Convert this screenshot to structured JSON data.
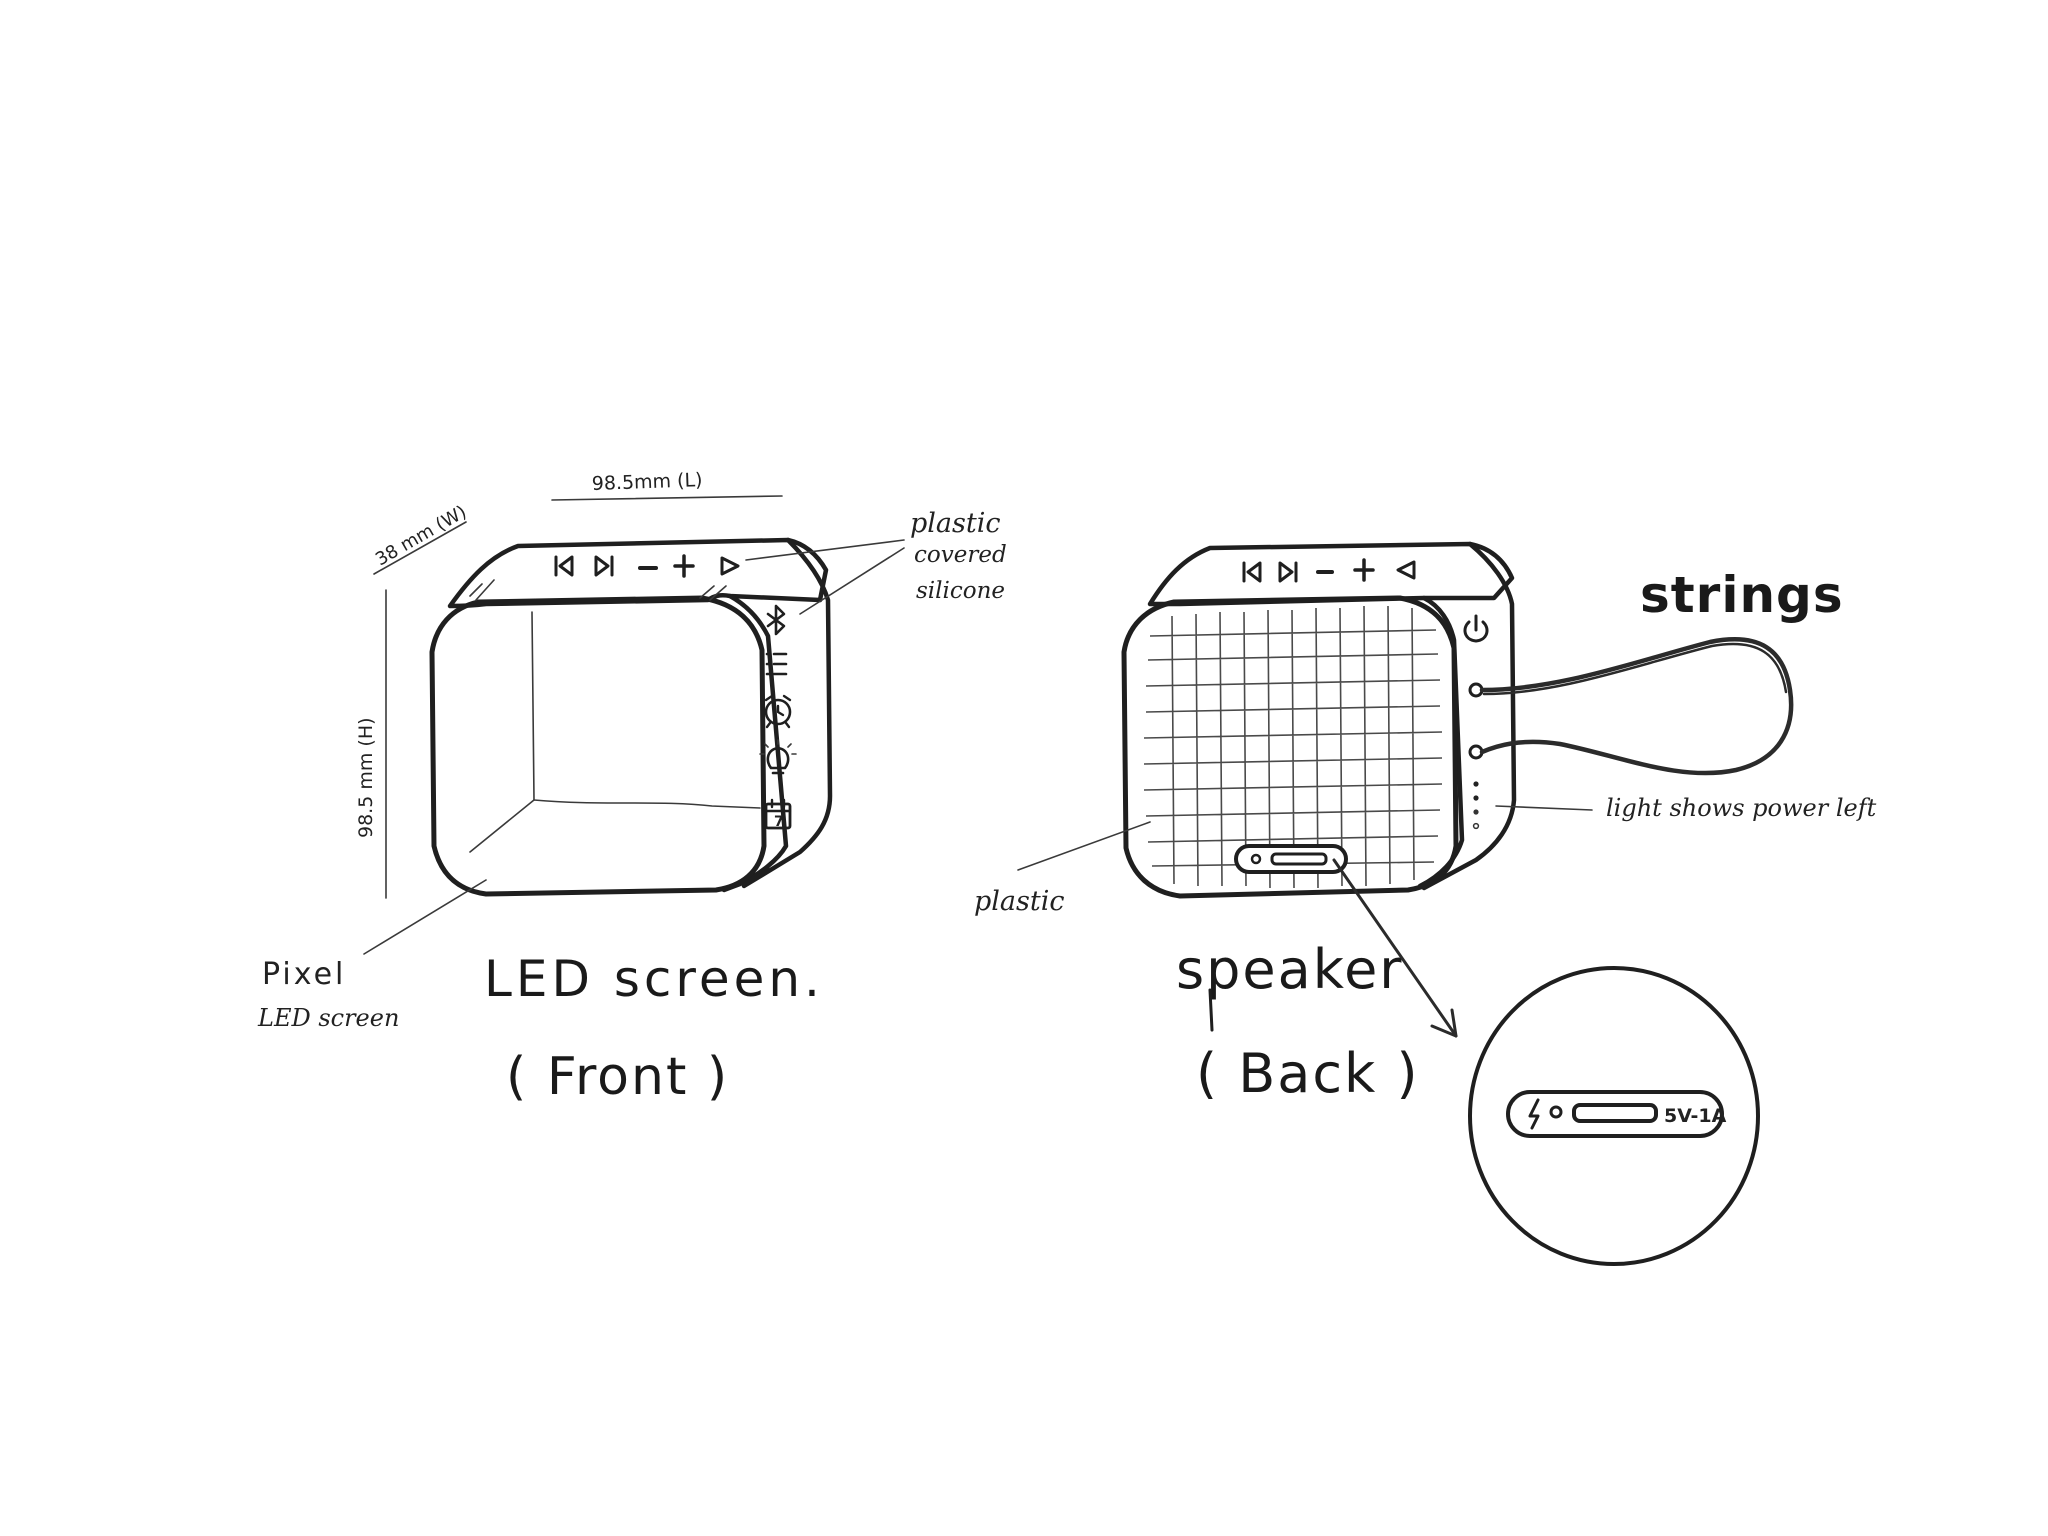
{
  "dimensions": {
    "length": "98.5mm (L)",
    "width": "38 mm (W)",
    "height": "98.5 mm (H)"
  },
  "annotations": {
    "material_top": [
      "plastic",
      "covered",
      "silicone"
    ],
    "pixel_screen": [
      "Pixel",
      "LED screen"
    ],
    "strings": "strings",
    "power_light": "light shows power left",
    "back_material": "plastic"
  },
  "front_view": {
    "caption_line1": "LED screen.",
    "caption_line2": "( Front )",
    "top_buttons_icons": [
      "prev-track-icon",
      "next-track-icon",
      "volume-down-icon",
      "volume-up-icon",
      "play-icon"
    ],
    "side_buttons_icons": [
      "bluetooth-icon",
      "menu-icon",
      "alarm-clock-icon",
      "light-bulb-icon",
      "calendar-icon"
    ],
    "calendar_digit": "7"
  },
  "back_view": {
    "caption_line1": "speaker",
    "caption_line2": "( Back )",
    "top_buttons_icons": [
      "prev-track-icon",
      "next-track-icon",
      "volume-down-icon",
      "volume-up-icon",
      "play-icon"
    ],
    "side_icons": [
      "power-icon"
    ]
  },
  "port_detail": {
    "label": "5V-1A",
    "icons": [
      "lightning-icon",
      "led-dot-icon",
      "usb-port-icon"
    ]
  }
}
